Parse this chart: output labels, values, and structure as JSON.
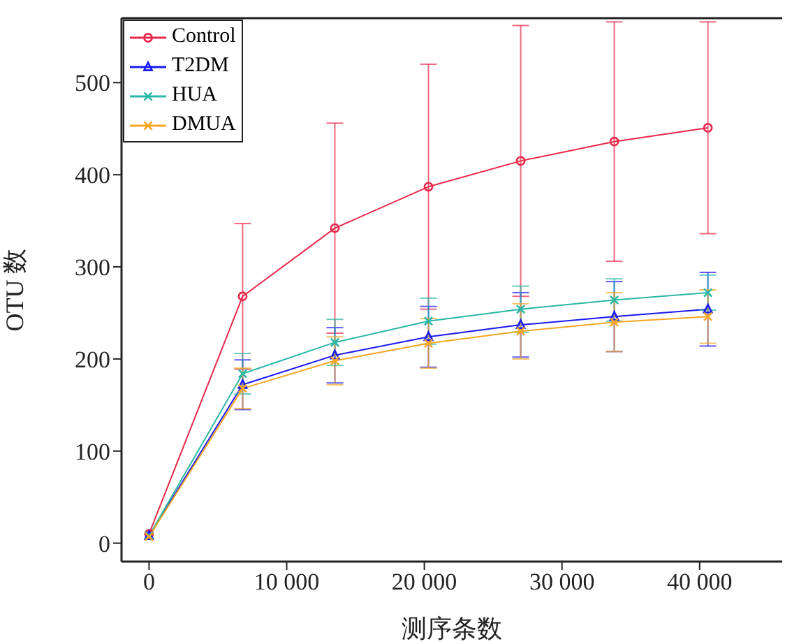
{
  "chart_data": {
    "type": "line",
    "xlabel": "测序条数",
    "ylabel": "OTU 数",
    "xlim": [
      -2000,
      46000
    ],
    "xticks": [
      0,
      {
        "value": 10000,
        "label": "10 000"
      },
      {
        "value": 20000,
        "label": "20 000"
      },
      {
        "value": 30000,
        "label": "30 000"
      },
      {
        "value": 40000,
        "label": "40 000"
      }
    ],
    "ylim": [
      -20,
      570
    ],
    "yticks": [
      0,
      100,
      200,
      300,
      400,
      500
    ],
    "legend": "top left",
    "series": [
      {
        "name": "Control",
        "color": "#e8284a",
        "marker": "circle",
        "x": [
          0,
          6800,
          13500,
          20300,
          27000,
          33800,
          40600
        ],
        "values": [
          10,
          268,
          342,
          387,
          415,
          436,
          451
        ],
        "errors": [
          null,
          79,
          114,
          133,
          147,
          130,
          115
        ]
      },
      {
        "name": "T2DM",
        "color": "#1a1af5",
        "marker": "triangle",
        "x": [
          0,
          6800,
          13500,
          20300,
          27000,
          33800,
          40600
        ],
        "values": [
          8,
          172,
          204,
          224,
          237,
          246,
          254
        ],
        "errors": [
          null,
          27,
          30,
          33,
          35,
          38,
          40
        ]
      },
      {
        "name": "HUA",
        "color": "#2ab7a5",
        "marker": "cross",
        "x": [
          0,
          6800,
          13500,
          20300,
          27000,
          33800,
          40600
        ],
        "values": [
          8,
          184,
          218,
          241,
          254,
          264,
          272
        ],
        "errors": [
          null,
          22,
          25,
          25,
          25,
          23,
          19
        ]
      },
      {
        "name": "DMUA",
        "color": "#f5a623",
        "marker": "cross",
        "x": [
          0,
          6800,
          13500,
          20300,
          27000,
          33800,
          40600
        ],
        "values": [
          7,
          168,
          198,
          217,
          230,
          240,
          246
        ],
        "errors": [
          null,
          22,
          26,
          27,
          30,
          32,
          29
        ]
      }
    ]
  }
}
